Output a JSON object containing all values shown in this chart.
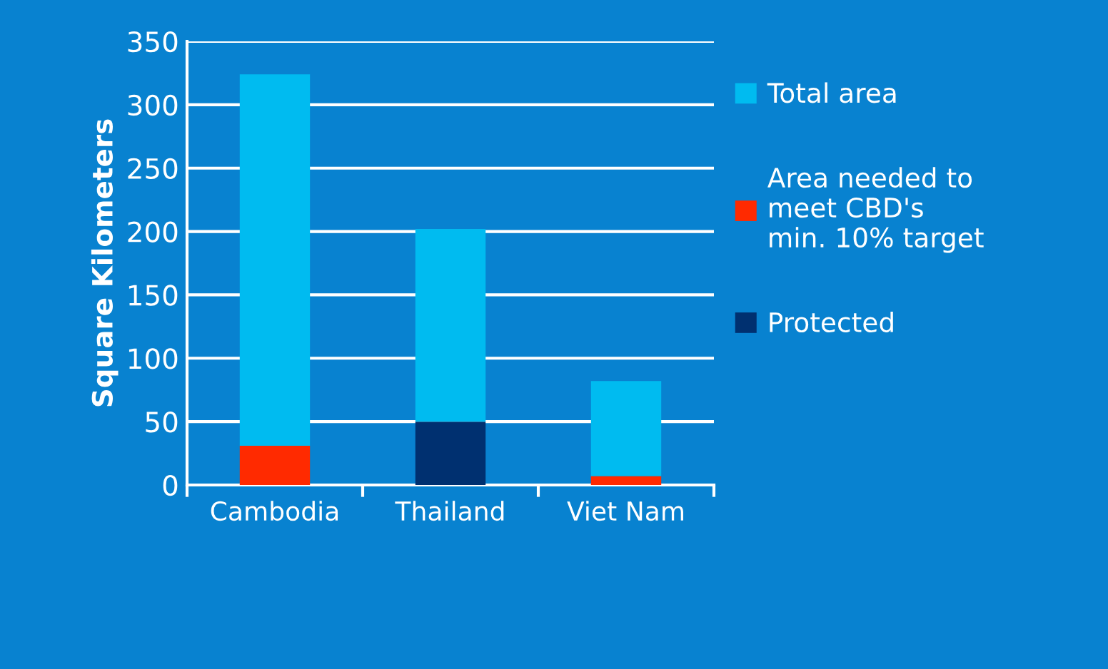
{
  "chart_data": {
    "type": "bar",
    "ylabel": "Square Kilometers",
    "categories": [
      "Cambodia",
      "Thailand",
      "Viet Nam"
    ],
    "stacked": true,
    "series": [
      {
        "name": "Area needed to\nmeet CBD's\nmin. 10% target",
        "color": "#ff2a00",
        "values": [
          31,
          null,
          7
        ]
      },
      {
        "name": "Protected",
        "color": "#003070",
        "values": [
          null,
          50,
          null
        ]
      },
      {
        "name": "Total area",
        "color": "#00bbf0",
        "values": [
          293,
          152,
          75
        ]
      }
    ],
    "ylim": [
      0,
      350
    ],
    "yticks": [
      0,
      50,
      100,
      150,
      200,
      250,
      300,
      350
    ],
    "grid": "y",
    "legend": "right"
  }
}
